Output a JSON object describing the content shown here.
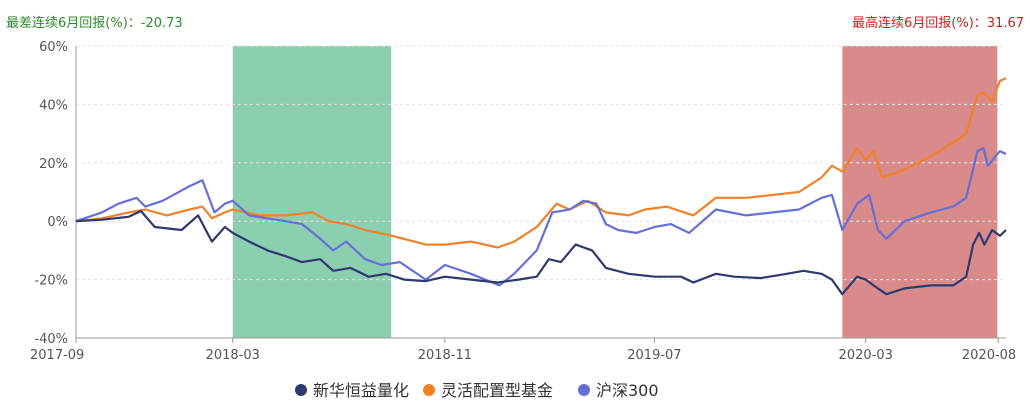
{
  "header": {
    "worst_label": "最差连续6月回报(%)：-20.73",
    "best_label": "最高连续6月回报(%)：31.67"
  },
  "colors": {
    "worst": "#2e8b2e",
    "best": "#cc1f1f",
    "worst_band": "#8ccfb0",
    "best_band": "#d98a8a",
    "series_fund": "#2e3a6e",
    "series_category": "#f28228",
    "series_index": "#6470d8",
    "grid": "#e3e3e3",
    "axis_text": "#555555"
  },
  "chart_data": {
    "type": "line",
    "x_range": [
      "2017-09-01",
      "2020-08-10"
    ],
    "ylim": [
      -40,
      60
    ],
    "yticks": [
      60,
      40,
      20,
      0,
      -20,
      -40
    ],
    "ytick_labels": [
      "60%",
      "40%",
      "20%",
      "0%",
      "-20%",
      "-40%"
    ],
    "xticks": [
      "2017-09-01",
      "2018-03-01",
      "2018-11-01",
      "2019-07-01",
      "2020-03-01",
      "2020-08-01"
    ],
    "xtick_labels": [
      "2017-09",
      "2018-03",
      "2018-11",
      "2019-07",
      "2020-03",
      "2020-08"
    ],
    "grid": true,
    "legend": "bottom-center",
    "highlight_bands": [
      {
        "name": "worst",
        "start": "2018-03-01",
        "end": "2018-08-31"
      },
      {
        "name": "best",
        "start": "2020-02-03",
        "end": "2020-07-31"
      }
    ],
    "series": [
      {
        "name": "新华恒益量化",
        "points": [
          [
            "2017-09-01",
            0
          ],
          [
            "2017-10-01",
            0.5
          ],
          [
            "2017-11-01",
            1.5
          ],
          [
            "2017-11-15",
            3.5
          ],
          [
            "2017-12-01",
            -2
          ],
          [
            "2018-01-01",
            -3
          ],
          [
            "2018-01-20",
            2
          ],
          [
            "2018-02-05",
            -7
          ],
          [
            "2018-02-20",
            -2
          ],
          [
            "2018-03-01",
            -4
          ],
          [
            "2018-03-20",
            -7
          ],
          [
            "2018-04-10",
            -10
          ],
          [
            "2018-05-01",
            -12
          ],
          [
            "2018-05-20",
            -14
          ],
          [
            "2018-06-10",
            -13
          ],
          [
            "2018-06-25",
            -17
          ],
          [
            "2018-07-15",
            -16
          ],
          [
            "2018-08-05",
            -19
          ],
          [
            "2018-08-25",
            -18
          ],
          [
            "2018-09-15",
            -20
          ],
          [
            "2018-10-10",
            -20.5
          ],
          [
            "2018-11-01",
            -19
          ],
          [
            "2018-12-01",
            -20
          ],
          [
            "2019-01-01",
            -21
          ],
          [
            "2019-01-25",
            -20
          ],
          [
            "2019-02-15",
            -19
          ],
          [
            "2019-03-01",
            -13
          ],
          [
            "2019-03-15",
            -14
          ],
          [
            "2019-04-01",
            -8
          ],
          [
            "2019-04-20",
            -10
          ],
          [
            "2019-05-06",
            -16
          ],
          [
            "2019-06-01",
            -18
          ],
          [
            "2019-07-01",
            -19
          ],
          [
            "2019-08-01",
            -19
          ],
          [
            "2019-08-15",
            -21
          ],
          [
            "2019-09-10",
            -18
          ],
          [
            "2019-10-01",
            -19
          ],
          [
            "2019-11-01",
            -19.5
          ],
          [
            "2019-12-01",
            -18
          ],
          [
            "2019-12-20",
            -17
          ],
          [
            "2020-01-10",
            -18
          ],
          [
            "2020-01-22",
            -20
          ],
          [
            "2020-02-03",
            -25
          ],
          [
            "2020-02-20",
            -19
          ],
          [
            "2020-03-01",
            -20
          ],
          [
            "2020-03-15",
            -23
          ],
          [
            "2020-03-25",
            -25
          ],
          [
            "2020-04-15",
            -23
          ],
          [
            "2020-05-15",
            -22
          ],
          [
            "2020-06-10",
            -22
          ],
          [
            "2020-06-25",
            -19
          ],
          [
            "2020-07-03",
            -8
          ],
          [
            "2020-07-10",
            -4
          ],
          [
            "2020-07-16",
            -8
          ],
          [
            "2020-07-25",
            -3
          ],
          [
            "2020-08-03",
            -5
          ],
          [
            "2020-08-10",
            -3
          ]
        ]
      },
      {
        "name": "灵活配置型基金",
        "points": [
          [
            "2017-09-01",
            0
          ],
          [
            "2017-10-01",
            1
          ],
          [
            "2017-11-01",
            3
          ],
          [
            "2017-11-20",
            4
          ],
          [
            "2017-12-15",
            2
          ],
          [
            "2018-01-10",
            4
          ],
          [
            "2018-01-25",
            5
          ],
          [
            "2018-02-05",
            1
          ],
          [
            "2018-02-20",
            3
          ],
          [
            "2018-03-01",
            4
          ],
          [
            "2018-04-01",
            2
          ],
          [
            "2018-05-01",
            2
          ],
          [
            "2018-06-01",
            3
          ],
          [
            "2018-06-20",
            0
          ],
          [
            "2018-07-10",
            -1
          ],
          [
            "2018-08-01",
            -3
          ],
          [
            "2018-09-01",
            -5
          ],
          [
            "2018-10-10",
            -8
          ],
          [
            "2018-11-01",
            -8
          ],
          [
            "2018-12-01",
            -7
          ],
          [
            "2019-01-01",
            -9
          ],
          [
            "2019-01-20",
            -7
          ],
          [
            "2019-02-15",
            -2
          ],
          [
            "2019-03-10",
            6
          ],
          [
            "2019-03-25",
            4
          ],
          [
            "2019-04-15",
            7
          ],
          [
            "2019-05-06",
            3
          ],
          [
            "2019-06-01",
            2
          ],
          [
            "2019-06-20",
            4
          ],
          [
            "2019-07-15",
            5
          ],
          [
            "2019-08-15",
            2
          ],
          [
            "2019-09-10",
            8
          ],
          [
            "2019-10-15",
            8
          ],
          [
            "2019-11-15",
            9
          ],
          [
            "2019-12-15",
            10
          ],
          [
            "2020-01-10",
            15
          ],
          [
            "2020-01-22",
            19
          ],
          [
            "2020-02-03",
            17
          ],
          [
            "2020-02-20",
            25
          ],
          [
            "2020-03-01",
            21
          ],
          [
            "2020-03-10",
            24
          ],
          [
            "2020-03-20",
            15
          ],
          [
            "2020-04-10",
            17
          ],
          [
            "2020-05-01",
            20
          ],
          [
            "2020-05-20",
            23
          ],
          [
            "2020-06-10",
            27
          ],
          [
            "2020-06-25",
            30
          ],
          [
            "2020-07-08",
            43
          ],
          [
            "2020-07-15",
            44
          ],
          [
            "2020-07-25",
            41
          ],
          [
            "2020-08-03",
            48
          ],
          [
            "2020-08-10",
            49
          ]
        ]
      },
      {
        "name": "沪深300",
        "points": [
          [
            "2017-09-01",
            0
          ],
          [
            "2017-10-01",
            3
          ],
          [
            "2017-10-20",
            6
          ],
          [
            "2017-11-10",
            8
          ],
          [
            "2017-11-20",
            5
          ],
          [
            "2017-12-10",
            7
          ],
          [
            "2018-01-10",
            12
          ],
          [
            "2018-01-25",
            14
          ],
          [
            "2018-02-08",
            3
          ],
          [
            "2018-02-20",
            6
          ],
          [
            "2018-03-01",
            7
          ],
          [
            "2018-03-20",
            2
          ],
          [
            "2018-04-10",
            1
          ],
          [
            "2018-05-01",
            0
          ],
          [
            "2018-05-20",
            -1
          ],
          [
            "2018-06-10",
            -6
          ],
          [
            "2018-06-25",
            -10
          ],
          [
            "2018-07-10",
            -7
          ],
          [
            "2018-08-01",
            -13
          ],
          [
            "2018-08-20",
            -15
          ],
          [
            "2018-09-10",
            -14
          ],
          [
            "2018-10-10",
            -20
          ],
          [
            "2018-11-01",
            -15
          ],
          [
            "2018-12-01",
            -18
          ],
          [
            "2019-01-03",
            -22
          ],
          [
            "2019-01-20",
            -18
          ],
          [
            "2019-02-15",
            -10
          ],
          [
            "2019-03-05",
            3
          ],
          [
            "2019-03-25",
            4
          ],
          [
            "2019-04-10",
            7
          ],
          [
            "2019-04-25",
            6
          ],
          [
            "2019-05-06",
            -1
          ],
          [
            "2019-05-20",
            -3
          ],
          [
            "2019-06-10",
            -4
          ],
          [
            "2019-07-01",
            -2
          ],
          [
            "2019-07-20",
            -1
          ],
          [
            "2019-08-10",
            -4
          ],
          [
            "2019-09-10",
            4
          ],
          [
            "2019-10-15",
            2
          ],
          [
            "2019-11-15",
            3
          ],
          [
            "2019-12-15",
            4
          ],
          [
            "2020-01-10",
            8
          ],
          [
            "2020-01-22",
            9
          ],
          [
            "2020-02-03",
            -3
          ],
          [
            "2020-02-20",
            6
          ],
          [
            "2020-03-05",
            9
          ],
          [
            "2020-03-15",
            -3
          ],
          [
            "2020-03-25",
            -6
          ],
          [
            "2020-04-15",
            0
          ],
          [
            "2020-05-15",
            3
          ],
          [
            "2020-06-10",
            5
          ],
          [
            "2020-06-25",
            8
          ],
          [
            "2020-07-08",
            24
          ],
          [
            "2020-07-15",
            25
          ],
          [
            "2020-07-20",
            19
          ],
          [
            "2020-08-03",
            24
          ],
          [
            "2020-08-10",
            23
          ]
        ]
      }
    ]
  }
}
